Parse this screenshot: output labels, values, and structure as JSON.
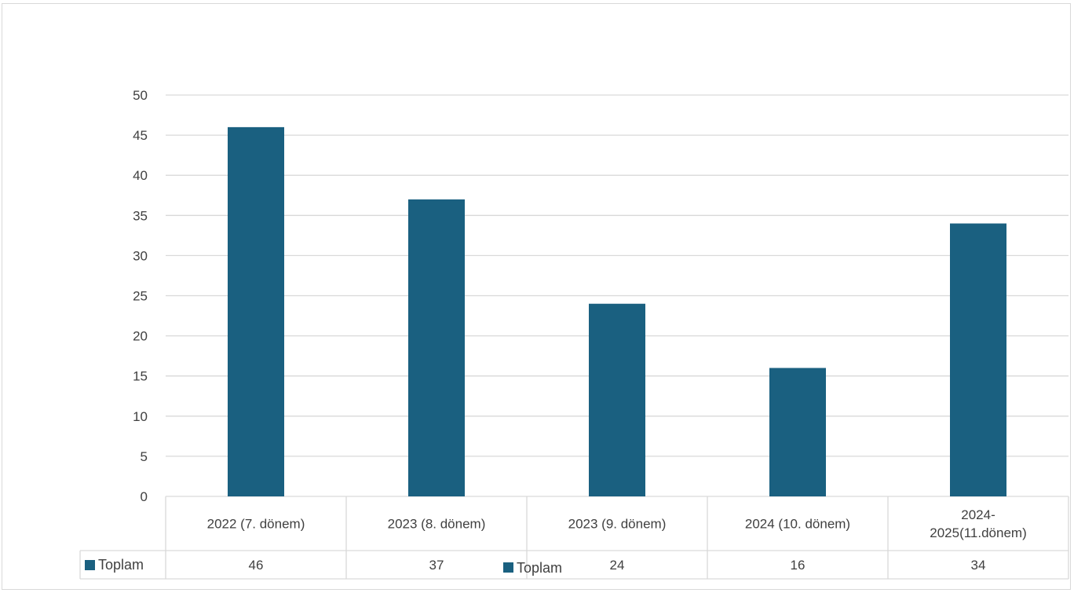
{
  "chart_data": {
    "type": "bar",
    "categories": [
      [
        "2022 (7. dönem)"
      ],
      [
        "2023 (8. dönem)"
      ],
      [
        "2023 (9. dönem)"
      ],
      [
        "2024 (10. dönem)"
      ],
      [
        "2024-",
        "2025(11.dönem)"
      ]
    ],
    "series": [
      {
        "name": "Toplam",
        "values": [
          46,
          37,
          24,
          16,
          34
        ],
        "color": "#1a6080"
      }
    ],
    "yticks": [
      0,
      5,
      10,
      15,
      20,
      25,
      30,
      35,
      40,
      45,
      50
    ],
    "ylim": [
      0,
      50
    ],
    "grid": true,
    "data_table": true,
    "legend": {
      "label": "Toplam",
      "position": "bottom-center"
    },
    "gridline_color": "#d9d9d9",
    "text_color": "#404040"
  }
}
